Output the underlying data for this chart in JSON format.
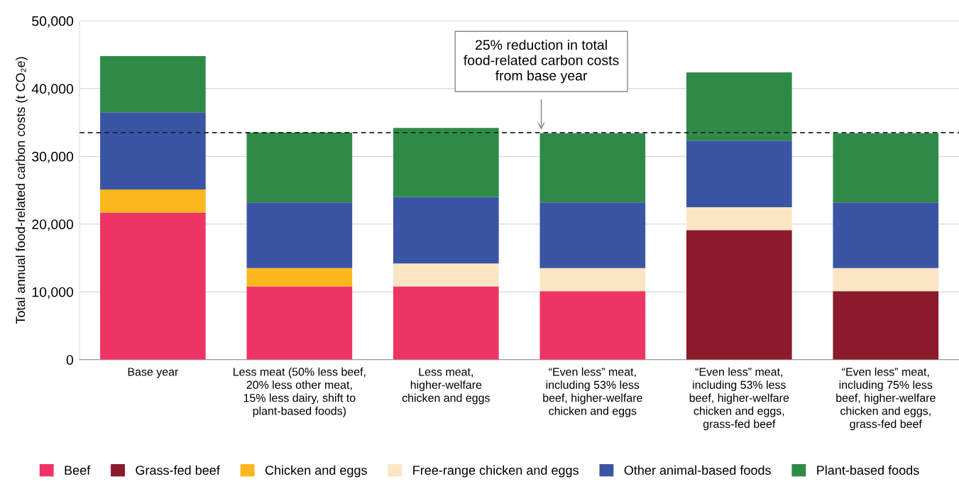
{
  "chart_data": {
    "type": "bar",
    "stacked": true,
    "ylabel": "Total annual food-related carbon costs (t CO₂e)",
    "categories": [
      "Base year",
      "Less meat (50% less beef,\n20% less other meat,\n15% less dairy, shift to\nplant-based foods)",
      "Less meat,\nhigher-welfare\nchicken and eggs",
      "“Even less” meat,\nincluding 53% less\nbeef, higher-welfare\nchicken and eggs",
      "“Even less” meat,\nincluding 53% less\nbeef, higher-welfare\nchicken and eggs,\ngrass-fed beef",
      "“Even less” meat,\nincluding 75% less\nbeef, higher-welfare\nchicken and eggs,\ngrass-fed beef"
    ],
    "series": [
      {
        "name": "Beef",
        "color": "#ee3465",
        "values": [
          21700,
          10800,
          10800,
          10100,
          null,
          null
        ]
      },
      {
        "name": "Grass-fed beef",
        "color": "#8b1a2a",
        "values": [
          null,
          null,
          null,
          null,
          19100,
          10100
        ]
      },
      {
        "name": "Chicken and eggs",
        "color": "#fbb71b",
        "values": [
          3400,
          2700,
          null,
          null,
          null,
          null
        ]
      },
      {
        "name": "Free-range chicken and eggs",
        "color": "#fbe6c3",
        "values": [
          null,
          null,
          3400,
          3400,
          3400,
          3400
        ]
      },
      {
        "name": "Other animal-based foods",
        "color": "#3a55a4",
        "values": [
          11400,
          9700,
          9800,
          9700,
          9800,
          9700
        ]
      },
      {
        "name": "Plant-based foods",
        "color": "#2e8b47",
        "values": [
          8300,
          10300,
          10200,
          10200,
          10100,
          10200
        ]
      }
    ],
    "ylim": [
      0,
      50000
    ],
    "yticks": [
      {
        "value": 0,
        "label": "0"
      },
      {
        "value": 10000,
        "label": "10,000"
      },
      {
        "value": 20000,
        "label": "20,000"
      },
      {
        "value": 30000,
        "label": "30,000"
      },
      {
        "value": 40000,
        "label": "40,000"
      },
      {
        "value": 50000,
        "label": "50,000"
      }
    ],
    "grid": "y",
    "legend": "bottom",
    "ref_lines": [
      {
        "axis": "y",
        "value": 33500,
        "label": "25% reduction in total\nfood-related carbon costs\nfrom base year",
        "color": "#222222",
        "line_style": "dashed"
      }
    ]
  }
}
